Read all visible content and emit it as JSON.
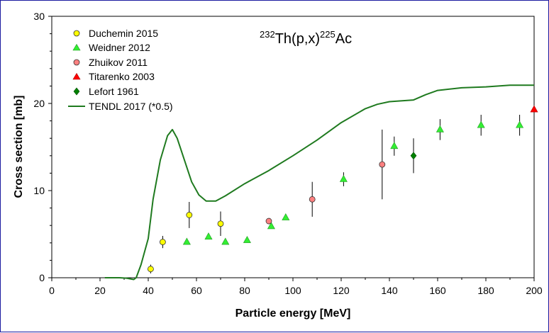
{
  "chart_data": {
    "type": "scatter",
    "title_parts": {
      "target_mass": "232",
      "target": "Th(p,x)",
      "product_mass": "225",
      "product": "Ac"
    },
    "xlabel": "Particle energy [MeV]",
    "ylabel": "Cross section [mb]",
    "xlim": [
      0,
      200
    ],
    "ylim": [
      0,
      30
    ],
    "xticks": [
      0,
      20,
      40,
      60,
      80,
      100,
      120,
      140,
      160,
      180,
      200
    ],
    "yticks": [
      0,
      10,
      20,
      30
    ],
    "legend_position": "top-left",
    "series": [
      {
        "name": "Duchemin 2015",
        "marker": "circle",
        "color": "#ffff00",
        "points": [
          {
            "x": 41,
            "y": 1.0,
            "err": 0.5
          },
          {
            "x": 46,
            "y": 4.1,
            "err": 0.7
          },
          {
            "x": 57,
            "y": 7.2,
            "err": 1.5
          },
          {
            "x": 70,
            "y": 6.2,
            "err": 1.4
          }
        ]
      },
      {
        "name": "Weidner 2012",
        "marker": "triangle",
        "color": "#33ee33",
        "points": [
          {
            "x": 56,
            "y": 4.1,
            "err": 0
          },
          {
            "x": 65,
            "y": 4.7,
            "err": 0
          },
          {
            "x": 72,
            "y": 4.1,
            "err": 0
          },
          {
            "x": 81,
            "y": 4.3,
            "err": 0
          },
          {
            "x": 91,
            "y": 5.9,
            "err": 0
          },
          {
            "x": 97,
            "y": 6.9,
            "err": 0
          },
          {
            "x": 121,
            "y": 11.3,
            "err": 0.8
          },
          {
            "x": 142,
            "y": 15.1,
            "err": 1.1
          },
          {
            "x": 161,
            "y": 17.0,
            "err": 1.2
          },
          {
            "x": 178,
            "y": 17.5,
            "err": 1.2
          },
          {
            "x": 194,
            "y": 17.5,
            "err": 1.2
          }
        ]
      },
      {
        "name": "Zhuikov 2011",
        "marker": "circle",
        "color": "#ff8080",
        "points": [
          {
            "x": 90,
            "y": 6.5,
            "err": 0.3
          },
          {
            "x": 108,
            "y": 9.0,
            "err": 2.0
          },
          {
            "x": 137,
            "y": 13.0,
            "err": 4.0
          }
        ]
      },
      {
        "name": "Titarenko 2003",
        "marker": "triangle",
        "color": "#ff0000",
        "points": [
          {
            "x": 200,
            "y": 19.3,
            "err": 0
          }
        ]
      },
      {
        "name": "Lefort 1961",
        "marker": "diamond",
        "color": "#008000",
        "points": [
          {
            "x": 150,
            "y": 14.0,
            "err": 2.0
          }
        ]
      },
      {
        "name": "TENDL 2017 (*0.5)",
        "marker": "line",
        "color": "#1f7a1f",
        "points": [
          {
            "x": 22,
            "y": 0
          },
          {
            "x": 28,
            "y": 0
          },
          {
            "x": 31,
            "y": -0.05
          },
          {
            "x": 34,
            "y": -0.2
          },
          {
            "x": 35,
            "y": 0
          },
          {
            "x": 37,
            "y": 1.5
          },
          {
            "x": 40,
            "y": 4.5
          },
          {
            "x": 42,
            "y": 9.0
          },
          {
            "x": 45,
            "y": 13.5
          },
          {
            "x": 48,
            "y": 16.3
          },
          {
            "x": 50,
            "y": 17.0
          },
          {
            "x": 52,
            "y": 16.0
          },
          {
            "x": 55,
            "y": 13.5
          },
          {
            "x": 58,
            "y": 11.0
          },
          {
            "x": 61,
            "y": 9.5
          },
          {
            "x": 64,
            "y": 8.8
          },
          {
            "x": 68,
            "y": 8.8
          },
          {
            "x": 72,
            "y": 9.4
          },
          {
            "x": 80,
            "y": 10.8
          },
          {
            "x": 90,
            "y": 12.3
          },
          {
            "x": 100,
            "y": 14.0
          },
          {
            "x": 110,
            "y": 15.8
          },
          {
            "x": 120,
            "y": 17.8
          },
          {
            "x": 130,
            "y": 19.4
          },
          {
            "x": 135,
            "y": 19.9
          },
          {
            "x": 140,
            "y": 20.2
          },
          {
            "x": 150,
            "y": 20.4
          },
          {
            "x": 155,
            "y": 21.0
          },
          {
            "x": 160,
            "y": 21.5
          },
          {
            "x": 170,
            "y": 21.8
          },
          {
            "x": 180,
            "y": 21.9
          },
          {
            "x": 190,
            "y": 22.1
          },
          {
            "x": 200,
            "y": 22.1
          }
        ]
      }
    ]
  }
}
